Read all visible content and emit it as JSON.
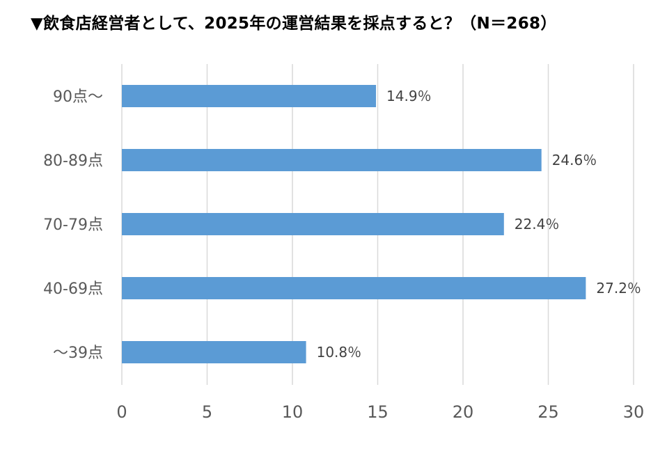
{
  "chart_data": {
    "type": "bar",
    "orientation": "horizontal",
    "title": "▼飲食店経営者として、2025年の運営結果を採点すると？（N＝268）",
    "categories": [
      "90点〜",
      "80-89点",
      "70-79点",
      "40-69点",
      "〜39点"
    ],
    "values": [
      14.9,
      24.6,
      22.4,
      27.2,
      10.8
    ],
    "data_labels": [
      "14.9％",
      "24.6％",
      "22.4％",
      "27.2％",
      "10.8％"
    ],
    "xlim": [
      0,
      30
    ],
    "xticks": [
      0,
      5,
      10,
      15,
      20,
      25,
      30
    ],
    "grid": true,
    "legend": "none",
    "bar_color": "#5b9bd5",
    "grid_color": "#d9d9d9"
  }
}
